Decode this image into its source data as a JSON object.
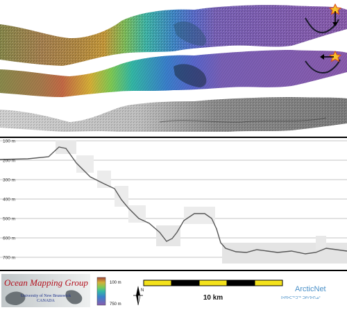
{
  "profile": {
    "depth_labels": [
      "100 m",
      "200 m",
      "300 m",
      "400 m",
      "500 m",
      "600 m",
      "700 m"
    ],
    "points": [
      [
        0,
        230
      ],
      [
        40,
        229
      ],
      [
        70,
        226
      ],
      [
        85,
        212
      ],
      [
        95,
        214
      ],
      [
        110,
        235
      ],
      [
        130,
        255
      ],
      [
        150,
        265
      ],
      [
        165,
        272
      ],
      [
        175,
        288
      ],
      [
        185,
        300
      ],
      [
        200,
        315
      ],
      [
        215,
        322
      ],
      [
        230,
        335
      ],
      [
        240,
        348
      ],
      [
        248,
        344
      ],
      [
        255,
        335
      ],
      [
        265,
        318
      ],
      [
        280,
        308
      ],
      [
        295,
        308
      ],
      [
        305,
        315
      ],
      [
        312,
        330
      ],
      [
        318,
        350
      ],
      [
        325,
        358
      ],
      [
        340,
        363
      ],
      [
        355,
        364
      ],
      [
        370,
        360
      ],
      [
        385,
        362
      ],
      [
        400,
        364
      ],
      [
        420,
        362
      ],
      [
        440,
        366
      ],
      [
        455,
        364
      ],
      [
        470,
        358
      ],
      [
        485,
        360
      ],
      [
        500,
        362
      ]
    ]
  },
  "legend": {
    "org_line1": "Ocean Mapping Group",
    "org_line2": "University of New Brunswick",
    "org_line3": "CANADA",
    "color_min": "100 m",
    "color_max": "750 m",
    "north": "N",
    "scale_label": "10 km",
    "partner": "ArcticNet",
    "partner_inuktitut": "ᐅᑭᐅᑕᖅᑐᖅ ᑐᑭᓯᐅᑎᓄᑦ"
  }
}
